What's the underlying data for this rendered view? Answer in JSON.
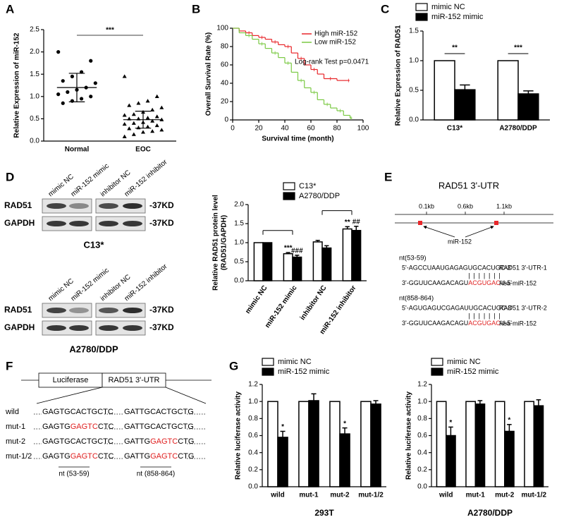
{
  "panel_labels": [
    "A",
    "B",
    "C",
    "D",
    "E",
    "F",
    "G"
  ],
  "chart_data": [
    {
      "type": "scatter",
      "ylabel": "Relative Expression of miR-152",
      "categories": [
        "Normal",
        "EOC"
      ],
      "color": "#000000",
      "values": [
        [
          2.0,
          1.8,
          1.55,
          1.45,
          1.35,
          1.3,
          1.2,
          1.15,
          1.1,
          1.05,
          1.0,
          0.95,
          0.9,
          0.85
        ],
        [
          1.45,
          1.0,
          0.9,
          0.85,
          0.8,
          0.75,
          0.7,
          0.65,
          0.6,
          0.58,
          0.55,
          0.52,
          0.5,
          0.5,
          0.48,
          0.45,
          0.42,
          0.4,
          0.38,
          0.35,
          0.32,
          0.3,
          0.28,
          0.25,
          0.22,
          0.2,
          0.15,
          0.1
        ]
      ],
      "mean": [
        1.2,
        0.48
      ],
      "sd": [
        0.32,
        0.19
      ],
      "significance": "***",
      "ylim": [
        0,
        2.5
      ],
      "yticks": [
        {
          "value": 0,
          "label": "0.0"
        },
        0.5,
        {
          "value": 1,
          "label": "1.0"
        },
        1.5,
        {
          "value": 2,
          "label": "2.0"
        },
        2.5
      ]
    },
    {
      "type": "step",
      "xlabel": "Survival time (month)",
      "ylabel": "Overall Survival Rate (%)",
      "annotation": "Log-rank Test  p=0.0471",
      "series": [
        {
          "name": "High miR-152",
          "color": "#e8262a",
          "x": [
            0,
            5,
            10,
            15,
            20,
            25,
            30,
            35,
            40,
            45,
            50,
            55,
            60,
            65,
            70,
            80,
            88
          ],
          "values": [
            100,
            97,
            95,
            92,
            90,
            88,
            85,
            82,
            80,
            73,
            67,
            60,
            55,
            50,
            45,
            43,
            43
          ]
        },
        {
          "name": "Low miR-152",
          "color": "#7ac943",
          "x": [
            0,
            5,
            10,
            15,
            20,
            25,
            30,
            35,
            40,
            45,
            50,
            55,
            60,
            65,
            70,
            75,
            80,
            85,
            90
          ],
          "values": [
            100,
            95,
            92,
            88,
            83,
            78,
            73,
            68,
            62,
            52,
            43,
            35,
            30,
            22,
            17,
            13,
            10,
            5,
            2
          ]
        }
      ],
      "xlim": [
        0,
        100
      ],
      "xticks": [
        0,
        20,
        40,
        60,
        80,
        100
      ],
      "ylim": [
        0,
        100
      ],
      "yticks": [
        0,
        20,
        40,
        60,
        80,
        100
      ]
    },
    {
      "type": "bar",
      "ylabel": "Relative Expression of RAD51",
      "categories": [
        "C13*",
        "A2780/DDP"
      ],
      "series": [
        {
          "name": "mimic NC",
          "color": "#ffffff",
          "values": [
            1,
            1
          ]
        },
        {
          "name": "miR-152 mimic",
          "color": "#000000",
          "values": [
            0.51,
            0.44
          ],
          "errors": [
            0.08,
            0.05
          ],
          "significance": [
            "**",
            "***"
          ]
        }
      ],
      "ylim": [
        0,
        1.5
      ],
      "yticks": [
        {
          "value": 0,
          "label": "0.0"
        },
        0.5,
        {
          "value": 1,
          "label": "1.0"
        },
        1.5
      ]
    },
    {
      "type": "bar",
      "ylabel": [
        "Relative RAD51 protein level",
        "(RAD51/GAPDH)"
      ],
      "categories": [
        "mimic NC",
        "miR-152 mimic",
        "inhibitor NC",
        "miR-152 inhibitor"
      ],
      "series": [
        {
          "name": "C13*",
          "color": "#ffffff",
          "values": [
            1,
            0.71,
            1.02,
            1.36
          ],
          "errors": [
            null,
            0.03,
            0.04,
            0.06
          ],
          "significance": [
            null,
            "***",
            null,
            "**"
          ]
        },
        {
          "name": "A2780/DDP",
          "color": "#000000",
          "values": [
            1,
            0.62,
            0.86,
            1.32
          ],
          "errors": [
            null,
            0.05,
            0.06,
            0.11
          ],
          "significance": [
            null,
            "###",
            null,
            "##"
          ]
        }
      ],
      "ylim": [
        0,
        2
      ],
      "yticks": [
        {
          "value": 0,
          "label": "0.0"
        },
        0.5,
        {
          "value": 1,
          "label": "1.0"
        },
        1.5,
        {
          "value": 2,
          "label": "2.0"
        }
      ]
    },
    {
      "type": "bar",
      "ylabel": "Relative luciferase activity",
      "xlabel": "293T",
      "categories": [
        "wild",
        "mut-1",
        "mut-2",
        "mut-1/2"
      ],
      "series": [
        {
          "name": "mimic NC",
          "color": "#ffffff",
          "values": [
            1,
            1,
            1,
            1
          ]
        },
        {
          "name": "miR-152 mimic",
          "color": "#000000",
          "values": [
            0.58,
            1.01,
            0.62,
            0.97
          ],
          "errors": [
            0.07,
            0.08,
            0.07,
            0.04
          ],
          "significance": [
            "*",
            null,
            "*",
            null
          ]
        }
      ],
      "ylim": [
        0,
        1.2
      ],
      "yticks": [
        {
          "value": 0,
          "label": "0.0"
        },
        0.2,
        0.4,
        0.6,
        0.8,
        {
          "value": 1,
          "label": "1.0"
        },
        1.2
      ]
    },
    {
      "type": "bar",
      "ylabel": "Relative luciferase activity",
      "xlabel": "A2780/DDP",
      "categories": [
        "wild",
        "mut-1",
        "mut-2",
        "mut-1/2"
      ],
      "series": [
        {
          "name": "mimic NC",
          "color": "#ffffff",
          "values": [
            1,
            1,
            1,
            1
          ]
        },
        {
          "name": "miR-152 mimic",
          "color": "#000000",
          "values": [
            0.6,
            0.97,
            0.65,
            0.95
          ],
          "errors": [
            0.1,
            0.04,
            0.08,
            0.07
          ],
          "significance": [
            "*",
            null,
            "*",
            null
          ]
        }
      ],
      "ylim": [
        0,
        1.2
      ],
      "yticks": [
        {
          "value": 0,
          "label": "0.0"
        },
        0.2,
        0.4,
        0.6,
        0.8,
        {
          "value": 1,
          "label": "1.0"
        },
        1.2
      ]
    }
  ],
  "blots": {
    "columns": [
      "mimic NC",
      "miR-152 mimic",
      "inhibitor NC",
      "miR-152 inhibitor"
    ],
    "rows": [
      "RAD51",
      "GAPDH"
    ],
    "size": "-37KD",
    "cell_lines": [
      "C13*",
      "A2780/DDP"
    ]
  },
  "utr": {
    "title": "RAD51 3'-UTR",
    "scale": [
      "0.1kb",
      "0.6kb",
      "1.1kb"
    ],
    "mirna": "miR-152",
    "sites": [
      {
        "position": "nt(53-59)",
        "target": "5'-AGCCUAAUGAGAGUGCACUGC-3'",
        "target_name": "RAD51 3'-UTR-1",
        "pairing": "|||||||",
        "mirna_seq": [
          {
            "text": "3'-GGUUCAAGACAGU"
          },
          {
            "text": "ACGUGAC",
            "color": "#e02020"
          },
          {
            "text": "U-5'"
          }
        ],
        "mirna_name": "Hsa-miR-152"
      },
      {
        "position": "nt(858-864)",
        "target": "5'-AGUGAGUCGAGAUUGCACUGC-3'",
        "target_name": "RAD51 3'-UTR-2",
        "pairing": "|||||||",
        "mirna_seq": [
          {
            "text": "3'-GGUUCAAGACAGU"
          },
          {
            "text": "ACGUGAC",
            "color": "#e02020"
          },
          {
            "text": "U-5'"
          }
        ],
        "mirna_name": "Hsa-miR-152"
      }
    ]
  },
  "luciferase": {
    "boxes": [
      "Luciferase",
      "RAD51 3'-UTR"
    ],
    "rows": [
      {
        "label": "wild",
        "site1": [
          {
            "text": "GAGTGCACTGCTC"
          }
        ],
        "site2": [
          {
            "text": "GATTGCACTGCTG"
          }
        ]
      },
      {
        "label": "mut-1",
        "site1": [
          {
            "text": "GAGTG"
          },
          {
            "text": "GAGTC",
            "color": "#e02020"
          },
          {
            "text": "CTC"
          }
        ],
        "site2": [
          {
            "text": "GATTGCACTGCTG"
          }
        ]
      },
      {
        "label": "mut-2",
        "site1": [
          {
            "text": "GAGTGCACTGCTC"
          }
        ],
        "site2": [
          {
            "text": "GATTG"
          },
          {
            "text": "GAGTC",
            "color": "#e02020"
          },
          {
            "text": "CTG"
          }
        ]
      },
      {
        "label": "mut-1/2",
        "site1": [
          {
            "text": "GAGTG"
          },
          {
            "text": "GAGTC",
            "color": "#e02020"
          },
          {
            "text": "CTC"
          }
        ],
        "site2": [
          {
            "text": "GATTG"
          },
          {
            "text": "GAGTC",
            "color": "#e02020"
          },
          {
            "text": "CTG"
          }
        ]
      }
    ],
    "positions": [
      "nt (53-59)",
      "nt (858-864)"
    ]
  }
}
